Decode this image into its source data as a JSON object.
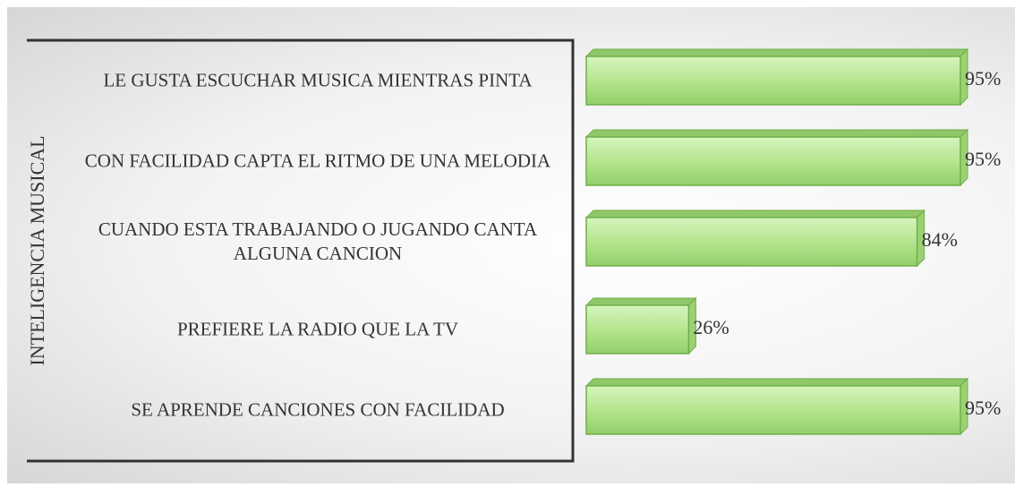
{
  "chart_data": {
    "type": "bar",
    "orientation": "horizontal",
    "axis_label": "INTELIGENCIA MUSICAL",
    "categories": [
      "LE GUSTA ESCUCHAR MUSICA MIENTRAS PINTA",
      "CON FACILIDAD CAPTA EL RITMO DE UNA MELODIA",
      "CUANDO ESTA TRABAJANDO O JUGANDO CANTA ALGUNA CANCION",
      "PREFIERE LA RADIO QUE LA TV",
      "SE APRENDE CANCIONES CON FACILIDAD"
    ],
    "values": [
      95,
      95,
      84,
      26,
      95
    ],
    "value_labels": [
      "95%",
      "95%",
      "84%",
      "26%",
      "95%"
    ],
    "color": "#b5e58f",
    "xlim": [
      0,
      100
    ]
  }
}
